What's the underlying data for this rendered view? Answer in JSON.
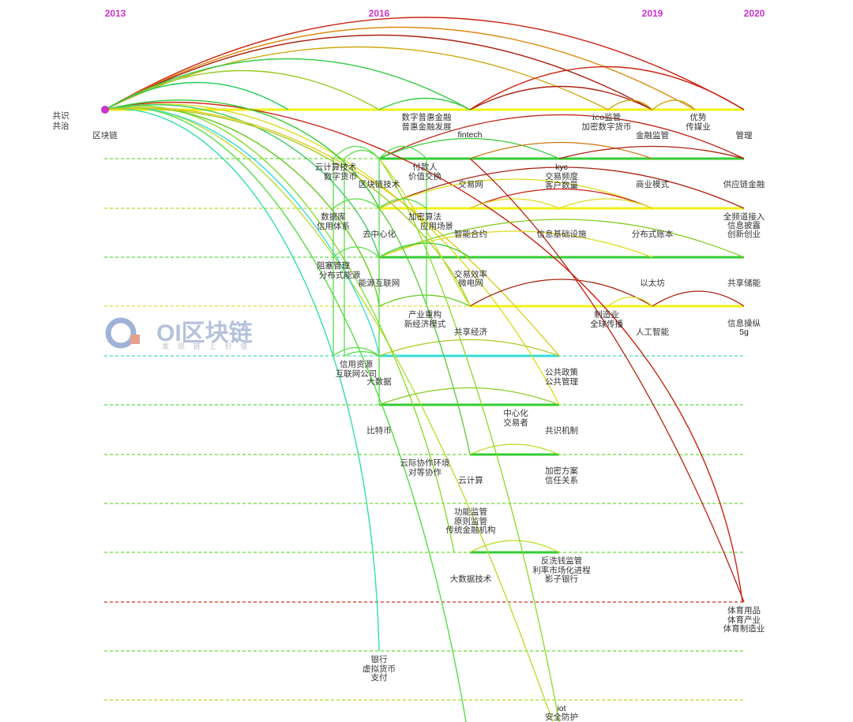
{
  "years": [
    "2013",
    "2016",
    "2019",
    "2020"
  ],
  "watermark": {
    "title": "OI区块链",
    "subtitle": "发 现 链 上 价 值"
  },
  "keywords": {
    "gongshi": "共识",
    "gongzhi": "共治",
    "qukuailian": "区块链",
    "shuzipuhui": "数字普惠金融",
    "puhuijinrong": "普惠金融发展",
    "fintech": "fintech",
    "ico": "ico监管",
    "jiami_huobi": "加密数字货币",
    "jinrong_jianguan": "金融监管",
    "youshi": "优势",
    "chuanmeiye": "传媒业",
    "guanli": "管理",
    "yunjisuan_jishu": "云计算技术",
    "shuzi_huobi": "数字货币",
    "fukuanren": "付款人",
    "jiazhi_jiaohuan": "价值交换",
    "qukuailian_jishu": "区块链技术",
    "jiaoyi_wang": "交易网",
    "kyc": "kyc",
    "jiaoyi_pindu": "交易频度",
    "kehu_shuliang": "客户数量",
    "shangye_moshi": "商业模式",
    "gongyinglian": "供应链金融",
    "shujuku": "数据库",
    "xinyong_tixi": "信用体系",
    "jiami_suanfa": "加密算法",
    "yingyong_changjing": "应用场景",
    "quanpindao": "全频道接入",
    "xinxi_pilu": "信息披露",
    "chuangxin_chuangye": "创新创业",
    "quzhongxinhua": "去中心化",
    "zhineng_heyue": "智能合约",
    "xinxi_jichu": "信息基础设施",
    "fenbushi_zhangben": "分布式账本",
    "zuse_guanli": "阻塞管理",
    "fenbushi_nengyuan": "分布式能源",
    "nengyuan_hulianwang": "能源互联网",
    "jiaoyi_xiaolv": "交易效率",
    "weidianwang": "微电网",
    "yitaifang": "以太坊",
    "gongxiang_chuneng": "共享储能",
    "chanye_chonggou": "产业重构",
    "xin_jingji": "新经济模式",
    "gongxiang_jingji": "共享经济",
    "zhizaoye": "制造业",
    "quanqiu_chuanbo": "全球传播",
    "rengong_zhineng": "人工智能",
    "xinxi_caozong": "信息操纵",
    "g5": "5g",
    "xinyong_ziyuan": "信用资源",
    "hulianwang_gongsi": "互联网公司",
    "dashuju": "大数据",
    "gonggong_zhengce": "公共政策",
    "gonggong_guanli": "公共管理",
    "zhongxinhua": "中心化",
    "jiaoyizhe": "交易者",
    "bitebi": "比特币",
    "gongshi_jizhi": "共识机制",
    "yunxiezuo": "云际协作环境",
    "duideng_xiezuo": "对等协作",
    "yunjisuan": "云计算",
    "jiami_fangan": "加密方案",
    "xinren_guanxi": "信任关系",
    "gongneng_jianguan": "功能监管",
    "yuanze_jianguan": "原则监管",
    "chuantong_jinrong": "传统金融机构",
    "fanxiqian": "反洗钱监管",
    "lilv_shichanghua": "利率市场化进程",
    "yingzi_yinhang": "影子银行",
    "dashuju_jishu": "大数据技术",
    "tiyu_yongpin": "体育用品",
    "tiyu_chanye": "体育产业",
    "tiyu_zhizao": "体育制造业",
    "yinhang": "银行",
    "xuni_huobi": "虚拟货币",
    "zhifu": "支付",
    "iot": "iot",
    "anquan_fanghu": "安全防护"
  }
}
